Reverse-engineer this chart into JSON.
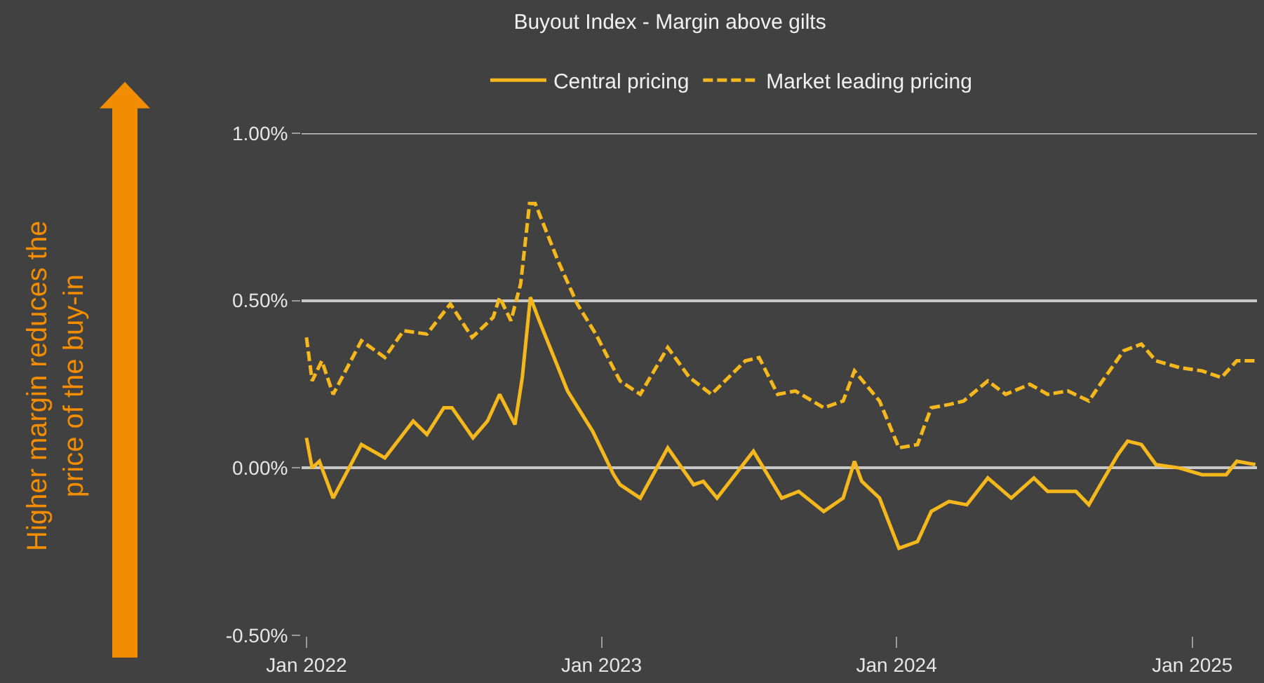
{
  "chart_data": {
    "type": "line",
    "title": "Buyout Index - Margin above gilts",
    "annotations": [
      "Higher margin reduces the\nprice of the buy-in"
    ],
    "xlim": [
      "2021-12-26",
      "2025-03-22"
    ],
    "xticks": [
      {
        "value": "2022-01-01",
        "label": "Jan 2022"
      },
      {
        "value": "2023-01-01",
        "label": "Jan 2023"
      },
      {
        "value": "2024-01-01",
        "label": "Jan 2024"
      },
      {
        "value": "2025-01-01",
        "label": "Jan 2025"
      }
    ],
    "ylim": [
      -0.5,
      1.0
    ],
    "yticks": [
      {
        "value": -0.5,
        "label": "-0.50%"
      },
      {
        "value": 0,
        "label": "0.00%"
      },
      {
        "value": 0.5,
        "label": "0.50%"
      },
      {
        "value": 1.0,
        "label": "1.00%"
      }
    ],
    "grid": "y",
    "legend": "top",
    "marker": "none",
    "series": [
      {
        "name": "Central pricing",
        "color": "#f5b81c",
        "line_style": "solid",
        "x": [
          "2022-01-01",
          "2022-01-08",
          "2022-01-17",
          "2022-02-03",
          "2022-03-10",
          "2022-04-08",
          "2022-05-13",
          "2022-05-30",
          "2022-06-20",
          "2022-06-30",
          "2022-07-26",
          "2022-08-13",
          "2022-08-28",
          "2022-09-16",
          "2022-09-25",
          "2022-10-05",
          "2022-10-16",
          "2022-11-20",
          "2022-12-21",
          "2023-01-16",
          "2023-01-24",
          "2023-02-18",
          "2023-03-24",
          "2023-04-25",
          "2023-05-07",
          "2023-05-24",
          "2023-07-08",
          "2023-08-12",
          "2023-09-02",
          "2023-10-03",
          "2023-10-27",
          "2023-11-10",
          "2023-11-19",
          "2023-12-11",
          "2024-01-04",
          "2024-01-27",
          "2024-02-13",
          "2024-03-06",
          "2024-03-28",
          "2024-04-23",
          "2024-05-22",
          "2024-06-19",
          "2024-07-06",
          "2024-08-10",
          "2024-08-26",
          "2024-09-14",
          "2024-10-01",
          "2024-10-13",
          "2024-10-30",
          "2024-11-17",
          "2024-12-16",
          "2025-01-13",
          "2025-02-12",
          "2025-02-25",
          "2025-03-20"
        ],
        "values": [
          0.09,
          0.0,
          0.02,
          -0.09,
          0.07,
          0.03,
          0.14,
          0.1,
          0.18,
          0.18,
          0.09,
          0.14,
          0.22,
          0.13,
          0.27,
          0.51,
          0.44,
          0.23,
          0.11,
          -0.02,
          -0.05,
          -0.09,
          0.06,
          -0.05,
          -0.04,
          -0.09,
          0.05,
          -0.09,
          -0.07,
          -0.13,
          -0.09,
          0.02,
          -0.04,
          -0.09,
          -0.24,
          -0.22,
          -0.13,
          -0.1,
          -0.11,
          -0.03,
          -0.09,
          -0.03,
          -0.07,
          -0.07,
          -0.11,
          -0.03,
          0.04,
          0.08,
          0.07,
          0.01,
          0.0,
          -0.02,
          -0.02,
          0.02,
          0.01
        ]
      },
      {
        "name": "Market leading pricing",
        "color": "#f5b81c",
        "line_style": "dashed",
        "x": [
          "2022-01-01",
          "2022-01-08",
          "2022-01-20",
          "2022-02-03",
          "2022-03-10",
          "2022-04-08",
          "2022-05-01",
          "2022-05-30",
          "2022-06-28",
          "2022-07-25",
          "2022-08-20",
          "2022-08-28",
          "2022-09-11",
          "2022-09-23",
          "2022-10-04",
          "2022-10-11",
          "2022-11-08",
          "2022-12-02",
          "2022-12-25",
          "2023-01-11",
          "2023-01-24",
          "2023-02-18",
          "2023-03-24",
          "2023-04-20",
          "2023-05-17",
          "2023-06-28",
          "2023-07-15",
          "2023-08-07",
          "2023-08-29",
          "2023-10-03",
          "2023-10-27",
          "2023-11-10",
          "2023-12-11",
          "2024-01-04",
          "2024-01-27",
          "2024-02-13",
          "2024-03-07",
          "2024-03-24",
          "2024-04-23",
          "2024-05-15",
          "2024-06-14",
          "2024-07-06",
          "2024-07-31",
          "2024-08-26",
          "2024-09-09",
          "2024-10-08",
          "2024-10-30",
          "2024-11-17",
          "2024-12-16",
          "2025-01-13",
          "2025-02-06",
          "2025-02-25",
          "2025-03-20"
        ],
        "values": [
          0.39,
          0.26,
          0.32,
          0.22,
          0.38,
          0.33,
          0.41,
          0.4,
          0.49,
          0.39,
          0.45,
          0.51,
          0.44,
          0.55,
          0.79,
          0.79,
          0.62,
          0.49,
          0.4,
          0.32,
          0.26,
          0.22,
          0.36,
          0.27,
          0.22,
          0.32,
          0.33,
          0.22,
          0.23,
          0.18,
          0.2,
          0.29,
          0.2,
          0.06,
          0.07,
          0.18,
          0.19,
          0.2,
          0.26,
          0.22,
          0.25,
          0.22,
          0.23,
          0.2,
          0.25,
          0.35,
          0.37,
          0.32,
          0.3,
          0.29,
          0.27,
          0.32,
          0.32
        ]
      }
    ]
  }
}
